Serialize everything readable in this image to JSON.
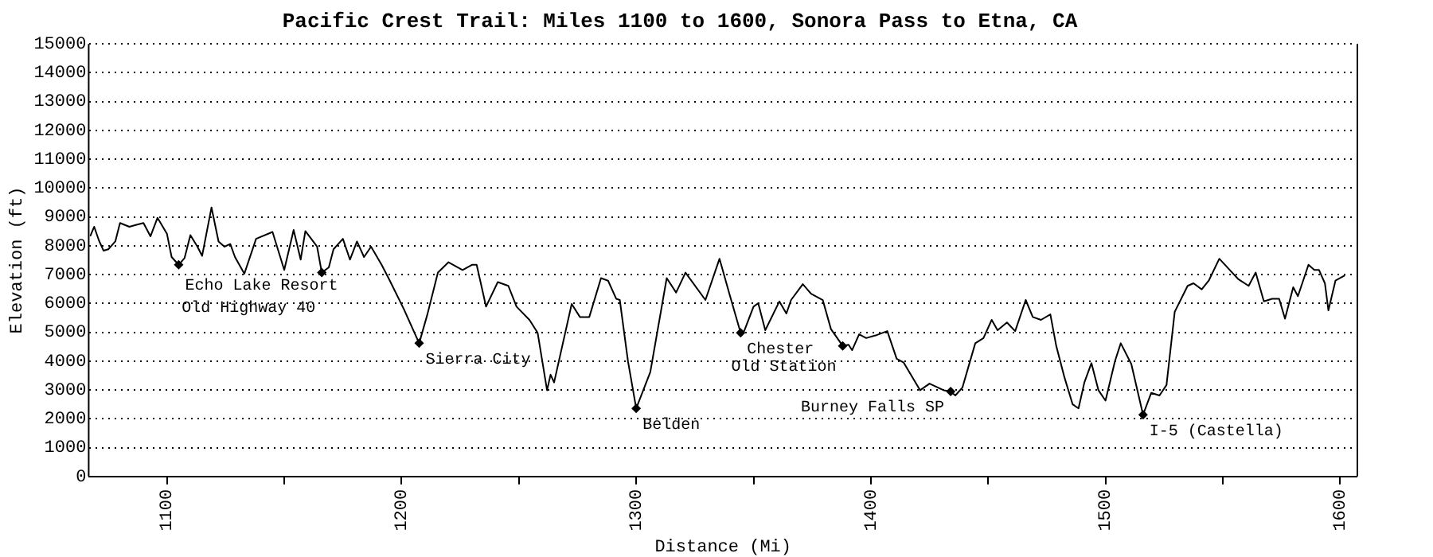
{
  "chart_data": {
    "type": "line",
    "title": "Pacific Crest Trail: Miles 1100 to 1600, Sonora Pass to Etna, CA",
    "xlabel": "Distance (Mi)",
    "ylabel": "Elevation (ft)",
    "series": [
      {
        "color": "#000000",
        "x": [
          1067.3,
          1069,
          1071,
          1073,
          1075,
          1078,
          1080,
          1084,
          1087,
          1090,
          1093,
          1096,
          1100,
          1102,
          1105,
          1107.5,
          1110,
          1113,
          1115,
          1119,
          1122,
          1124.5,
          1127,
          1129,
          1133,
          1138,
          1145,
          1150,
          1154,
          1157,
          1159,
          1164,
          1166,
          1169,
          1171,
          1175,
          1178,
          1181,
          1184,
          1187,
          1191.5,
          1195,
          1201,
          1207.5,
          1211,
          1215.5,
          1220,
          1226,
          1230,
          1232,
          1236,
          1241,
          1245.5,
          1249,
          1254.5,
          1258,
          1262,
          1263.5,
          1265,
          1272.5,
          1276,
          1280,
          1285,
          1288,
          1291.5,
          1293,
          1296.5,
          1300,
          1306,
          1313,
          1317,
          1321,
          1329.5,
          1335.5,
          1340,
          1344.5,
          1346,
          1350,
          1352,
          1355,
          1361,
          1364,
          1366,
          1371,
          1374.5,
          1379.5,
          1383,
          1388,
          1390.5,
          1392,
          1395,
          1398,
          1402,
          1407,
          1411,
          1414,
          1421,
          1425,
          1431,
          1434,
          1436,
          1439,
          1444.5,
          1448,
          1451.5,
          1454,
          1458,
          1461.5,
          1466,
          1469,
          1472.5,
          1476.5,
          1479,
          1482.5,
          1486,
          1488.5,
          1491,
          1494,
          1497,
          1500,
          1504,
          1506.5,
          1511,
          1516,
          1519.5,
          1523,
          1526,
          1529.5,
          1535,
          1537.5,
          1541,
          1544,
          1548.5,
          1554,
          1556.5,
          1561,
          1564,
          1567.5,
          1571,
          1574,
          1576.5,
          1580,
          1582,
          1586.5,
          1589,
          1591,
          1593.5,
          1595,
          1598,
          1602
        ],
        "values": [
          8330,
          8660,
          8190,
          7830,
          7880,
          8150,
          8790,
          8660,
          8730,
          8790,
          8330,
          8970,
          8420,
          7610,
          7340,
          7570,
          8370,
          7970,
          7650,
          9330,
          8150,
          7970,
          8060,
          7610,
          7030,
          8240,
          8480,
          7160,
          8550,
          7520,
          8510,
          7970,
          7070,
          7250,
          7880,
          8240,
          7520,
          8150,
          7610,
          7970,
          7340,
          6790,
          5800,
          4620,
          5620,
          7070,
          7430,
          7160,
          7340,
          7340,
          5890,
          6740,
          6610,
          5890,
          5430,
          4980,
          2990,
          3530,
          3260,
          5980,
          5530,
          5530,
          6880,
          6790,
          6160,
          6120,
          3990,
          2360,
          3620,
          6880,
          6380,
          7070,
          6120,
          7550,
          6250,
          4980,
          5040,
          5890,
          6010,
          5070,
          6070,
          5650,
          6120,
          6670,
          6340,
          6120,
          5110,
          4530,
          4570,
          4380,
          4930,
          4800,
          4890,
          5040,
          4080,
          3950,
          2990,
          3220,
          2990,
          2950,
          2810,
          3080,
          4620,
          4800,
          5430,
          5070,
          5340,
          5040,
          6120,
          5530,
          5430,
          5620,
          4530,
          3440,
          2500,
          2360,
          3260,
          3930,
          2990,
          2630,
          3990,
          4620,
          3900,
          2140,
          2900,
          2810,
          3170,
          5710,
          6610,
          6700,
          6490,
          6790,
          7550,
          7070,
          6850,
          6610,
          7070,
          6070,
          6160,
          6160,
          5470,
          6560,
          6250,
          7340,
          7160,
          7160,
          6700,
          5760,
          6790,
          6970
        ]
      }
    ],
    "annotations": [
      {
        "text": "Echo Lake Resort",
        "x": 1105,
        "y": 7340
      },
      {
        "text": "Old Highway 40",
        "x": 1166,
        "y": 7070
      },
      {
        "text": "Sierra City",
        "x": 1207.5,
        "y": 4620
      },
      {
        "text": "Belden",
        "x": 1300,
        "y": 2360
      },
      {
        "text": "Chester",
        "x": 1344.5,
        "y": 4980
      },
      {
        "text": "Old Station",
        "x": 1388,
        "y": 4530
      },
      {
        "text": "Burney Falls SP",
        "x": 1434,
        "y": 2950
      },
      {
        "text": "I-5 (Castella)",
        "x": 1516,
        "y": 2140
      }
    ],
    "xlim": [
      1067,
      1607
    ],
    "xticks": [
      1100,
      {
        "value": 1150,
        "label": null
      },
      1200,
      {
        "value": 1250,
        "label": null
      },
      1300,
      {
        "value": 1350,
        "label": null
      },
      1400,
      {
        "value": 1450,
        "label": null
      },
      1500,
      {
        "value": 1550,
        "label": null
      },
      1600
    ],
    "ylim": [
      0,
      15000
    ],
    "yticks": [
      0,
      1000,
      2000,
      3000,
      4000,
      5000,
      6000,
      7000,
      8000,
      9000,
      10000,
      11000,
      12000,
      13000,
      14000,
      15000
    ],
    "grid": "y",
    "legend": false,
    "marker": "none",
    "line_style": "solid"
  }
}
